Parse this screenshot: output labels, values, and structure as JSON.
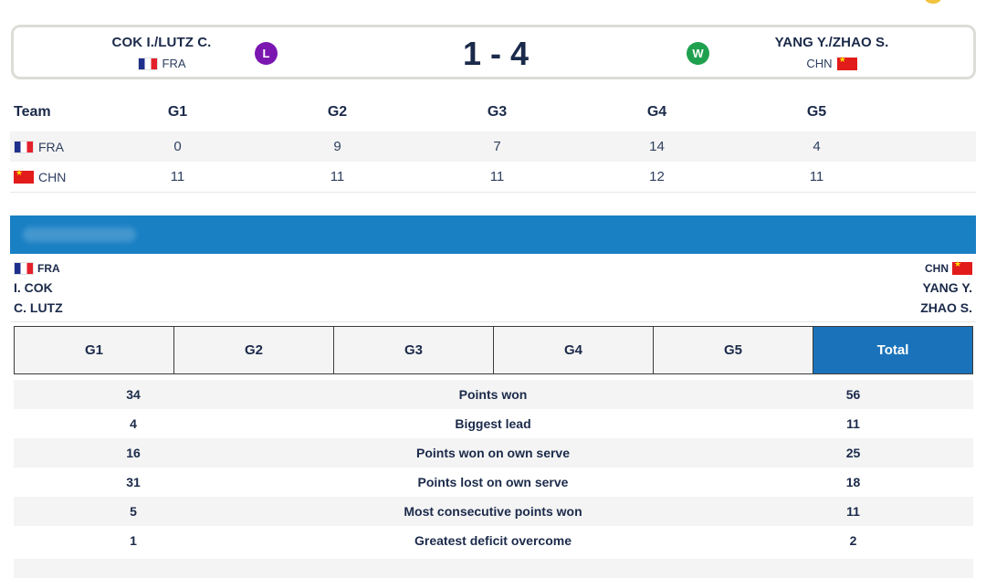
{
  "scoreboard": {
    "left": {
      "name": "COK I./LUTZ C.",
      "country": "FRA",
      "result": "L"
    },
    "score": "1 - 4",
    "right": {
      "name": "YANG Y./ZHAO S.",
      "country": "CHN",
      "result": "W"
    }
  },
  "games_table": {
    "headers": [
      "Team",
      "G1",
      "G2",
      "G3",
      "G4",
      "G5"
    ],
    "rows": [
      {
        "country": "FRA",
        "scores": [
          "0",
          "9",
          "7",
          "14",
          "4"
        ]
      },
      {
        "country": "CHN",
        "scores": [
          "11",
          "11",
          "11",
          "12",
          "11"
        ]
      }
    ]
  },
  "players": {
    "left": {
      "country": "FRA",
      "names": [
        "I. COK",
        "C. LUTZ"
      ]
    },
    "right": {
      "country": "CHN",
      "names": [
        "YANG Y.",
        "ZHAO S."
      ]
    }
  },
  "tabs": [
    "G1",
    "G2",
    "G3",
    "G4",
    "G5",
    "Total"
  ],
  "active_tab": "Total",
  "stats": [
    {
      "left": "34",
      "label": "Points won",
      "right": "56"
    },
    {
      "left": "4",
      "label": "Biggest lead",
      "right": "11"
    },
    {
      "left": "16",
      "label": "Points won on own serve",
      "right": "25"
    },
    {
      "left": "31",
      "label": "Points lost on own serve",
      "right": "18"
    },
    {
      "left": "5",
      "label": "Most consecutive points won",
      "right": "11"
    },
    {
      "left": "1",
      "label": "Greatest deficit overcome",
      "right": "2"
    }
  ],
  "colors": {
    "navy": "#1b2a4a",
    "banner_blue": "#1a80c4",
    "active_tab_blue": "#1a73ba",
    "loss_badge": "#7b17b0",
    "win_badge": "#1fa04e",
    "row_alt": "#f4f4f4"
  }
}
